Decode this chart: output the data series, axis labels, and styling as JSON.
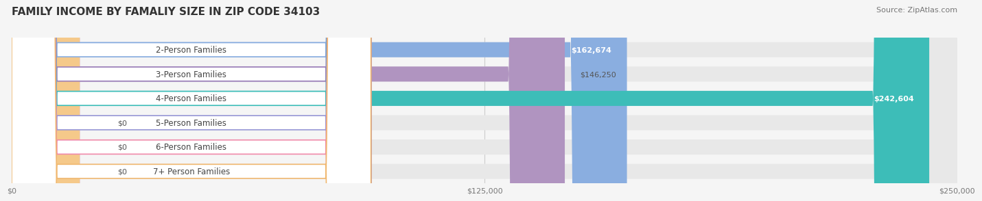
{
  "title": "FAMILY INCOME BY FAMALIY SIZE IN ZIP CODE 34103",
  "source": "Source: ZipAtlas.com",
  "categories": [
    "2-Person Families",
    "3-Person Families",
    "4-Person Families",
    "5-Person Families",
    "6-Person Families",
    "7+ Person Families"
  ],
  "values": [
    162674,
    146250,
    242604,
    0,
    0,
    0
  ],
  "bar_colors": [
    "#8aaee0",
    "#b094c0",
    "#3dbdb8",
    "#a8a8e8",
    "#f49ab0",
    "#f5c98a"
  ],
  "label_colors": [
    "#8aaee0",
    "#9b7fba",
    "#3dbdb8",
    "#9898d8",
    "#f08aaa",
    "#f0b870"
  ],
  "value_labels": [
    "$162,674",
    "$146,250",
    "$242,604",
    "$0",
    "$0",
    "$0"
  ],
  "value_label_inside": [
    true,
    false,
    true,
    false,
    false,
    false
  ],
  "xlim": [
    0,
    250000
  ],
  "xtick_labels": [
    "$0",
    "$125,000",
    "$250,000"
  ],
  "xtick_values": [
    0,
    125000,
    250000
  ],
  "background_color": "#f5f5f5",
  "bar_bg_color": "#e8e8e8",
  "bar_height": 0.62,
  "title_fontsize": 11,
  "source_fontsize": 8,
  "label_fontsize": 8.5,
  "value_fontsize": 8
}
